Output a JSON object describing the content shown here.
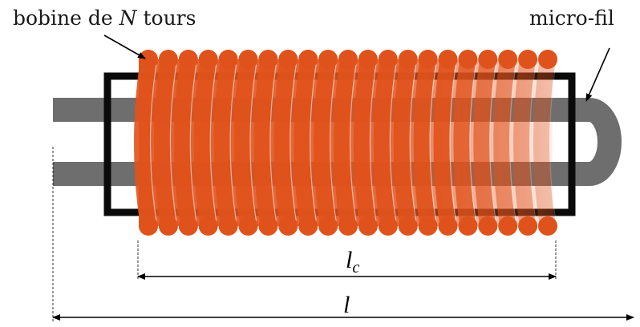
{
  "labels": {
    "coil_prefix": "bobine de ",
    "coil_var": "N",
    "coil_suffix": " tours",
    "wire": "micro-fil"
  },
  "dimensions": {
    "coil_length": {
      "symbol": "l",
      "subscript": "c"
    },
    "total_length": {
      "symbol": "l"
    }
  },
  "coil": {
    "turns": 21
  },
  "colors": {
    "wire": "#6e6e6e",
    "coil": "#e0521c",
    "frame": "#0a0a0a",
    "text": "#1a1a1a"
  }
}
